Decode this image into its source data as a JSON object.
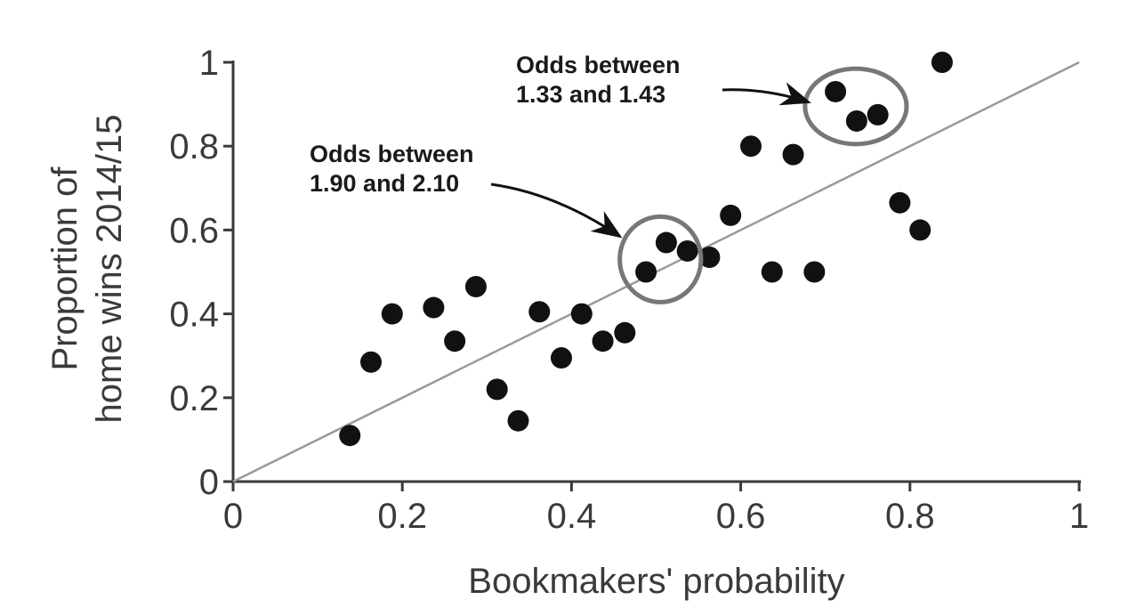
{
  "chart_data": {
    "type": "scatter",
    "title": "",
    "xlabel": "Bookmakers' probability",
    "ylabel_lines": [
      "Proportion of",
      "home wins 2014/15"
    ],
    "xlim": [
      0,
      1
    ],
    "ylim": [
      0,
      1
    ],
    "x_ticks": [
      {
        "value": 0,
        "label": "0"
      },
      {
        "value": 0.2,
        "label": "0.2"
      },
      {
        "value": 0.4,
        "label": "0.4"
      },
      {
        "value": 0.6,
        "label": "0.6"
      },
      {
        "value": 0.8,
        "label": "0.8"
      },
      {
        "value": 1,
        "label": "1"
      }
    ],
    "y_ticks": [
      {
        "value": 0,
        "label": "0"
      },
      {
        "value": 0.2,
        "label": "0.2"
      },
      {
        "value": 0.4,
        "label": "0.4"
      },
      {
        "value": 0.6,
        "label": "0.6"
      },
      {
        "value": 0.8,
        "label": "0.8"
      },
      {
        "value": 1,
        "label": "1"
      }
    ],
    "grid": false,
    "reference_line": {
      "from": [
        0,
        0
      ],
      "to": [
        1,
        1
      ],
      "color": "#9a9a9a"
    },
    "point_color": "#111111",
    "points": [
      {
        "x": 0.138,
        "y": 0.11
      },
      {
        "x": 0.163,
        "y": 0.285
      },
      {
        "x": 0.188,
        "y": 0.4
      },
      {
        "x": 0.237,
        "y": 0.415
      },
      {
        "x": 0.262,
        "y": 0.335
      },
      {
        "x": 0.287,
        "y": 0.465
      },
      {
        "x": 0.312,
        "y": 0.22
      },
      {
        "x": 0.337,
        "y": 0.145
      },
      {
        "x": 0.362,
        "y": 0.405
      },
      {
        "x": 0.388,
        "y": 0.295
      },
      {
        "x": 0.412,
        "y": 0.4
      },
      {
        "x": 0.437,
        "y": 0.335
      },
      {
        "x": 0.463,
        "y": 0.355
      },
      {
        "x": 0.488,
        "y": 0.5
      },
      {
        "x": 0.512,
        "y": 0.57
      },
      {
        "x": 0.537,
        "y": 0.55
      },
      {
        "x": 0.563,
        "y": 0.535
      },
      {
        "x": 0.588,
        "y": 0.635
      },
      {
        "x": 0.612,
        "y": 0.8
      },
      {
        "x": 0.637,
        "y": 0.5
      },
      {
        "x": 0.662,
        "y": 0.78
      },
      {
        "x": 0.687,
        "y": 0.5
      },
      {
        "x": 0.712,
        "y": 0.93
      },
      {
        "x": 0.737,
        "y": 0.86
      },
      {
        "x": 0.762,
        "y": 0.875
      },
      {
        "x": 0.788,
        "y": 0.665
      },
      {
        "x": 0.812,
        "y": 0.6
      },
      {
        "x": 0.838,
        "y": 1.0
      }
    ],
    "highlight_color": "#777777",
    "annotations": [
      {
        "lines": [
          "Odds between",
          "1.90 and 2.10"
        ],
        "ellipse_center": [
          0.505,
          0.53
        ],
        "ellipse_radii": [
          0.048,
          0.102
        ],
        "arrow_to": [
          0.457,
          0.585
        ]
      },
      {
        "lines": [
          "Odds between",
          "1.33 and 1.43"
        ],
        "ellipse_center": [
          0.736,
          0.895
        ],
        "ellipse_radii": [
          0.06,
          0.09
        ],
        "arrow_to": [
          0.68,
          0.905
        ]
      }
    ]
  }
}
